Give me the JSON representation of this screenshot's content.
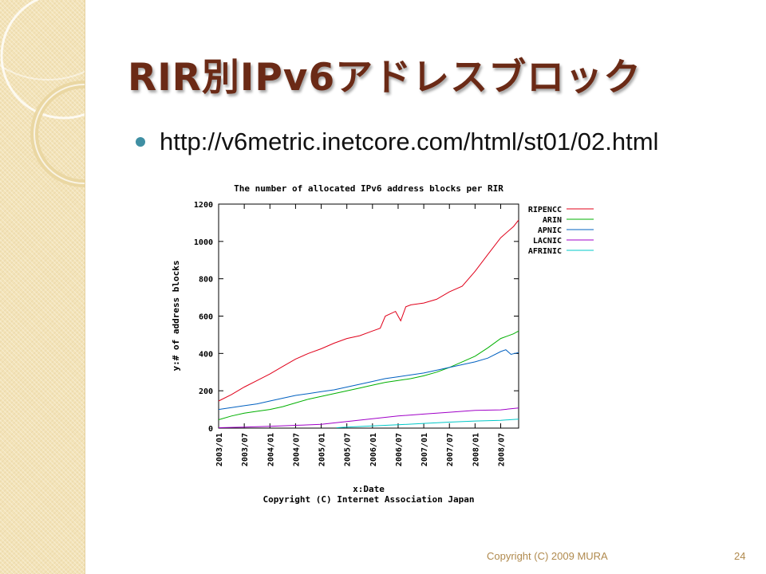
{
  "slide": {
    "title": "RIR別IPv6アドレスブロック",
    "bullet": "http://v6metric.inetcore.com/html/st01/02.html",
    "footer": "Copyright (C) 2009 MURA",
    "page_number": "24"
  },
  "colors": {
    "title": "#6b2a16",
    "bullet": "#3f8fa3",
    "footer": "#b08a4e",
    "sidebar": "#f3e3b8"
  },
  "chart_data": {
    "type": "line",
    "title": "The number of allocated IPv6 address blocks per RIR",
    "xlabel": "x:Date",
    "ylabel": "y:# of address blocks",
    "caption": "Copyright (C) Internet Association Japan",
    "ylim": [
      0,
      1200
    ],
    "yticks": [
      0,
      200,
      400,
      600,
      800,
      1000,
      1200
    ],
    "xlim": [
      2003.0,
      2008.85
    ],
    "xticks": [
      {
        "value": 2003.0,
        "label": "2003/01"
      },
      {
        "value": 2003.5,
        "label": "2003/07"
      },
      {
        "value": 2004.0,
        "label": "2004/01"
      },
      {
        "value": 2004.5,
        "label": "2004/07"
      },
      {
        "value": 2005.0,
        "label": "2005/01"
      },
      {
        "value": 2005.5,
        "label": "2005/07"
      },
      {
        "value": 2006.0,
        "label": "2006/01"
      },
      {
        "value": 2006.5,
        "label": "2006/07"
      },
      {
        "value": 2007.0,
        "label": "2007/01"
      },
      {
        "value": 2007.5,
        "label": "2007/07"
      },
      {
        "value": 2008.0,
        "label": "2008/01"
      },
      {
        "value": 2008.5,
        "label": "2008/07"
      }
    ],
    "legend_position": "right",
    "series": [
      {
        "name": "RIPENCC",
        "color": "#e0001a",
        "x": [
          2003.0,
          2003.25,
          2003.5,
          2003.75,
          2004.0,
          2004.25,
          2004.5,
          2004.75,
          2005.0,
          2005.25,
          2005.5,
          2005.75,
          2006.0,
          2006.15,
          2006.25,
          2006.45,
          2006.55,
          2006.65,
          2006.75,
          2007.0,
          2007.25,
          2007.5,
          2007.75,
          2008.0,
          2008.25,
          2008.5,
          2008.75,
          2008.85
        ],
        "y": [
          145,
          180,
          220,
          255,
          290,
          330,
          370,
          400,
          425,
          455,
          480,
          495,
          520,
          535,
          600,
          625,
          575,
          650,
          660,
          670,
          690,
          730,
          760,
          840,
          930,
          1020,
          1080,
          1115
        ]
      },
      {
        "name": "ARIN",
        "color": "#00b000",
        "x": [
          2003.0,
          2003.25,
          2003.5,
          2003.75,
          2004.0,
          2004.25,
          2004.5,
          2004.75,
          2005.0,
          2005.25,
          2005.5,
          2005.75,
          2006.0,
          2006.25,
          2006.5,
          2006.75,
          2007.0,
          2007.25,
          2007.5,
          2007.75,
          2008.0,
          2008.25,
          2008.5,
          2008.75,
          2008.85
        ],
        "y": [
          45,
          65,
          80,
          90,
          100,
          115,
          135,
          155,
          170,
          185,
          200,
          215,
          230,
          245,
          255,
          265,
          280,
          300,
          325,
          355,
          385,
          430,
          480,
          505,
          520
        ]
      },
      {
        "name": "APNIC",
        "color": "#0060c0",
        "x": [
          2003.0,
          2003.25,
          2003.5,
          2003.75,
          2004.0,
          2004.25,
          2004.5,
          2004.75,
          2005.0,
          2005.25,
          2005.5,
          2005.75,
          2006.0,
          2006.25,
          2006.5,
          2006.75,
          2007.0,
          2007.25,
          2007.5,
          2007.75,
          2008.0,
          2008.25,
          2008.5,
          2008.6,
          2008.7,
          2008.85
        ],
        "y": [
          100,
          110,
          120,
          130,
          145,
          160,
          175,
          185,
          195,
          205,
          220,
          235,
          250,
          265,
          275,
          285,
          295,
          310,
          325,
          340,
          355,
          375,
          410,
          420,
          395,
          405
        ]
      },
      {
        "name": "LACNIC",
        "color": "#a000c8",
        "x": [
          2003.0,
          2003.5,
          2004.0,
          2004.5,
          2005.0,
          2005.5,
          2006.0,
          2006.5,
          2007.0,
          2007.5,
          2008.0,
          2008.5,
          2008.85
        ],
        "y": [
          2,
          5,
          10,
          15,
          20,
          35,
          50,
          65,
          75,
          85,
          95,
          98,
          108
        ]
      },
      {
        "name": "AFRINIC",
        "color": "#00c8c8",
        "x": [
          2005.3,
          2005.5,
          2006.0,
          2006.5,
          2007.0,
          2007.5,
          2008.0,
          2008.5,
          2008.85
        ],
        "y": [
          2,
          5,
          12,
          18,
          25,
          32,
          38,
          42,
          48
        ]
      }
    ]
  }
}
